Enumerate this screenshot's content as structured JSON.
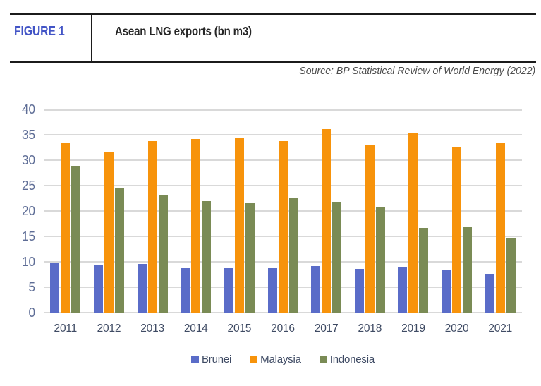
{
  "header": {
    "figure_label": "FIGURE 1",
    "title": "Asean LNG exports (bn m3)",
    "source": "Source: BP Statistical Review of World Energy (2022)"
  },
  "colors": {
    "figure_label_blue": "#4254C6",
    "header_rule": "#1b1b1b",
    "gridline": "#d9d9d9",
    "y_tick_text": "#5e6d96",
    "x_tick_text": "#3f4b64",
    "brunei": "#5a6cc8",
    "malaysia": "#f7930b",
    "indonesia": "#7a8b55"
  },
  "chart_data": {
    "type": "bar",
    "title": "Asean LNG exports (bn m3)",
    "ylabel": "",
    "xlabel": "",
    "ylim": [
      0,
      40
    ],
    "ytick_step": 5,
    "grid": true,
    "legend_position": "bottom",
    "categories": [
      "2011",
      "2012",
      "2013",
      "2014",
      "2015",
      "2016",
      "2017",
      "2018",
      "2019",
      "2020",
      "2021"
    ],
    "series": [
      {
        "name": "Brunei",
        "color": "#5a6cc8",
        "values": [
          9.7,
          9.3,
          9.6,
          8.7,
          8.7,
          8.7,
          9.2,
          8.6,
          8.9,
          8.5,
          7.7
        ]
      },
      {
        "name": "Malaysia",
        "color": "#f7930b",
        "values": [
          33.3,
          31.5,
          33.7,
          34.1,
          34.4,
          33.7,
          36.1,
          33.1,
          35.3,
          32.6,
          33.5
        ]
      },
      {
        "name": "Indonesia",
        "color": "#7a8b55",
        "values": [
          28.9,
          24.6,
          23.2,
          21.9,
          21.7,
          22.6,
          21.8,
          20.9,
          16.6,
          16.9,
          14.7
        ]
      }
    ]
  }
}
